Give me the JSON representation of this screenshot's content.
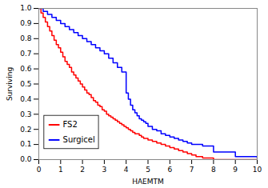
{
  "chart_data": {
    "type": "step",
    "xlabel": "HAEMTM",
    "ylabel": "Surviving",
    "xlim": [
      0,
      10
    ],
    "ylim": [
      0,
      1.0
    ],
    "xticks": [
      0,
      1,
      2,
      3,
      4,
      5,
      6,
      7,
      8,
      9,
      10
    ],
    "yticks": [
      {
        "value": 0.0,
        "label": "0.0"
      },
      0.1,
      0.2,
      0.3,
      0.4,
      0.5,
      0.6,
      0.7,
      0.8,
      0.9,
      {
        "value": 1.0,
        "label": "1.0"
      }
    ],
    "grid": false,
    "legend": "lower left",
    "series": [
      {
        "name": "FS2",
        "color": "#FF0000",
        "x": [
          0,
          0.1,
          0.2,
          0.3,
          0.4,
          0.5,
          0.6,
          0.7,
          0.8,
          0.9,
          1.0,
          1.1,
          1.2,
          1.3,
          1.4,
          1.5,
          1.6,
          1.7,
          1.8,
          1.9,
          2.0,
          2.1,
          2.2,
          2.3,
          2.4,
          2.5,
          2.6,
          2.7,
          2.8,
          2.9,
          3.0,
          3.1,
          3.2,
          3.3,
          3.4,
          3.5,
          3.6,
          3.7,
          3.8,
          3.9,
          4.0,
          4.1,
          4.2,
          4.3,
          4.4,
          4.5,
          4.6,
          4.7,
          4.8,
          4.9,
          5.0,
          5.2,
          5.4,
          5.6,
          5.8,
          6.0,
          6.2,
          6.4,
          6.6,
          6.8,
          7.0,
          7.2,
          7.5,
          8.0,
          10.0
        ],
        "values": [
          1.0,
          0.97,
          0.94,
          0.91,
          0.88,
          0.85,
          0.82,
          0.79,
          0.76,
          0.74,
          0.71,
          0.68,
          0.65,
          0.63,
          0.61,
          0.58,
          0.56,
          0.54,
          0.52,
          0.5,
          0.48,
          0.46,
          0.44,
          0.43,
          0.41,
          0.39,
          0.38,
          0.36,
          0.35,
          0.33,
          0.32,
          0.3,
          0.29,
          0.28,
          0.27,
          0.26,
          0.25,
          0.24,
          0.23,
          0.22,
          0.21,
          0.2,
          0.19,
          0.18,
          0.17,
          0.17,
          0.16,
          0.15,
          0.14,
          0.14,
          0.13,
          0.12,
          0.11,
          0.1,
          0.09,
          0.08,
          0.07,
          0.06,
          0.05,
          0.04,
          0.03,
          0.02,
          0.01,
          0.0,
          0.0
        ]
      },
      {
        "name": "Surgicel",
        "color": "#0000FF",
        "x": [
          0,
          0.2,
          0.4,
          0.6,
          0.8,
          1.0,
          1.2,
          1.4,
          1.6,
          1.8,
          2.0,
          2.2,
          2.4,
          2.6,
          2.8,
          3.0,
          3.2,
          3.4,
          3.6,
          3.8,
          4.0,
          4.1,
          4.2,
          4.3,
          4.4,
          4.5,
          4.6,
          4.7,
          4.8,
          4.9,
          5.0,
          5.2,
          5.4,
          5.6,
          5.8,
          6.0,
          6.2,
          6.4,
          6.6,
          6.8,
          7.0,
          7.2,
          7.5,
          8.0,
          9.0,
          10.0
        ],
        "values": [
          1.0,
          0.98,
          0.96,
          0.94,
          0.92,
          0.9,
          0.88,
          0.86,
          0.84,
          0.82,
          0.8,
          0.78,
          0.76,
          0.74,
          0.72,
          0.7,
          0.67,
          0.64,
          0.61,
          0.58,
          0.44,
          0.4,
          0.36,
          0.33,
          0.31,
          0.29,
          0.27,
          0.26,
          0.25,
          0.24,
          0.22,
          0.2,
          0.19,
          0.17,
          0.16,
          0.15,
          0.14,
          0.13,
          0.12,
          0.11,
          0.1,
          0.1,
          0.09,
          0.05,
          0.02,
          0.01
        ]
      }
    ]
  }
}
